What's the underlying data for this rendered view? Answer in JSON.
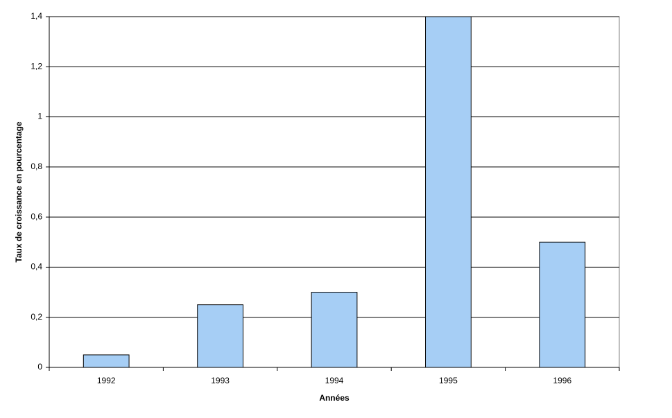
{
  "chart_data": {
    "type": "bar",
    "x_label": "Années",
    "y_label": "Taux de croissance en pourcentage",
    "categories": [
      "1992",
      "1993",
      "1994",
      "1995",
      "1996"
    ],
    "values": [
      0.05,
      0.25,
      0.3,
      1.4,
      0.5
    ],
    "color": "#a6cef5",
    "ylim": [
      0,
      1.4
    ],
    "yticks": [
      0,
      {
        "value": 0.2,
        "label": "0,2"
      },
      {
        "value": 0.4,
        "label": "0,4"
      },
      {
        "value": 0.6,
        "label": "0,6"
      },
      {
        "value": 0.8,
        "label": "0,8"
      },
      1,
      {
        "value": 1.2,
        "label": "1,2"
      },
      {
        "value": 1.4,
        "label": "1,4"
      }
    ],
    "grid": true
  }
}
